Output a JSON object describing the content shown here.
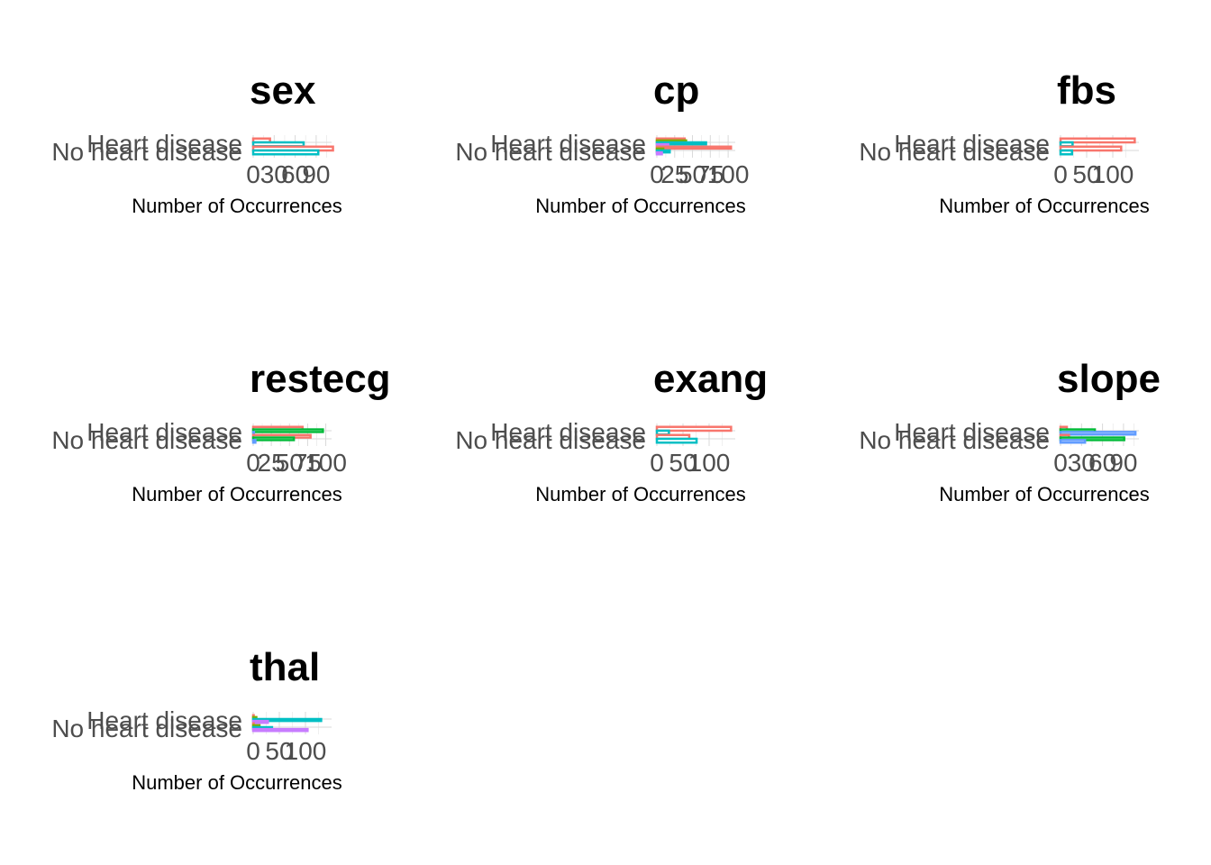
{
  "chart_data": [
    {
      "type": "bar",
      "title": "sex",
      "xlabel": "Number of Occurrences",
      "categories": [
        "Heart disease",
        "No heart disease"
      ],
      "xlim": [
        0,
        112
      ],
      "xticks": [
        "0",
        "30",
        "60",
        "90"
      ],
      "xtick_values": [
        0,
        30,
        60,
        90
      ],
      "colors": [
        "#F8766D",
        "#00BFC4"
      ],
      "series": [
        {
          "values": [
            24,
            114
          ]
        },
        {
          "values": [
            72,
            93
          ]
        }
      ]
    },
    {
      "type": "bar",
      "title": "cp",
      "xlabel": "Number of Occurrences",
      "categories": [
        "Heart disease",
        "No heart disease"
      ],
      "xlim": [
        0,
        110
      ],
      "xticks": [
        "0",
        "25",
        "50",
        "75",
        "100"
      ],
      "xtick_values": [
        0,
        25,
        50,
        75,
        100
      ],
      "colors": [
        "#F8766D",
        "#7CAE00",
        "#00BFC4",
        "#C77CFF"
      ],
      "series": [
        {
          "values": [
            39,
            104
          ]
        },
        {
          "values": [
            41,
            9
          ]
        },
        {
          "values": [
            69,
            18
          ]
        },
        {
          "values": [
            16,
            7
          ]
        }
      ]
    },
    {
      "type": "bar",
      "title": "fbs",
      "xlabel": "Number of Occurrences",
      "categories": [
        "Heart disease",
        "No heart disease"
      ],
      "xlim": [
        0,
        150
      ],
      "xticks": [
        "0",
        "50",
        "100"
      ],
      "xtick_values": [
        0,
        50,
        100
      ],
      "colors": [
        "#F8766D",
        "#00BFC4"
      ],
      "series": [
        {
          "values": [
            142,
            116
          ]
        },
        {
          "values": [
            23,
            22
          ]
        }
      ]
    },
    {
      "type": "bar",
      "title": "restecg",
      "xlabel": "Number of Occurrences",
      "categories": [
        "Heart disease",
        "No heart disease"
      ],
      "xlim": [
        0,
        108
      ],
      "xticks": [
        "0",
        "25",
        "50",
        "75",
        "100"
      ],
      "xtick_values": [
        0,
        25,
        50,
        75,
        100
      ],
      "colors": [
        "#F8766D",
        "#00BA38",
        "#619CFF"
      ],
      "series": [
        {
          "values": [
            68,
            79
          ]
        },
        {
          "values": [
            96,
            56
          ]
        },
        {
          "values": [
            1,
            3
          ]
        }
      ]
    },
    {
      "type": "bar",
      "title": "exang",
      "xlabel": "Number of Occurrences",
      "categories": [
        "Heart disease",
        "No heart disease"
      ],
      "xlim": [
        0,
        150
      ],
      "xticks": [
        "0",
        "50",
        "100"
      ],
      "xtick_values": [
        0,
        50,
        100
      ],
      "colors": [
        "#F8766D",
        "#00BFC4"
      ],
      "series": [
        {
          "values": [
            142,
            62
          ]
        },
        {
          "values": [
            23,
            76
          ]
        }
      ]
    },
    {
      "type": "bar",
      "title": "slope",
      "xlabel": "Number of Occurrences",
      "categories": [
        "Heart disease",
        "No heart disease"
      ],
      "xlim": [
        0,
        112
      ],
      "xticks": [
        "0",
        "30",
        "60",
        "90"
      ],
      "xtick_values": [
        0,
        30,
        60,
        90
      ],
      "colors": [
        "#F8766D",
        "#00BA38",
        "#619CFF"
      ],
      "series": [
        {
          "values": [
            9,
            12
          ]
        },
        {
          "values": [
            49,
            91
          ]
        },
        {
          "values": [
            107,
            35
          ]
        }
      ]
    },
    {
      "type": "bar",
      "title": "thal",
      "xlabel": "Number of Occurrences",
      "categories": [
        "Heart disease",
        "No heart disease"
      ],
      "xlim": [
        0,
        150
      ],
      "xticks": [
        "0",
        "50",
        "100"
      ],
      "xtick_values": [
        0,
        50,
        100
      ],
      "colors": [
        "#F8766D",
        "#7CAE00",
        "#00BFC4",
        "#C77CFF"
      ],
      "series": [
        {
          "values": [
            1,
            1
          ]
        },
        {
          "values": [
            6,
            12
          ]
        },
        {
          "values": [
            130,
            36
          ]
        },
        {
          "values": [
            28,
            104
          ]
        }
      ]
    }
  ]
}
